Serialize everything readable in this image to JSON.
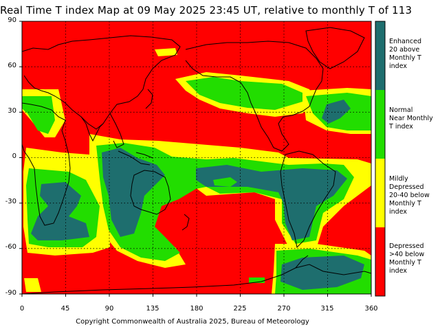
{
  "title": "Real Time T index Map at 09 May 2025 23:45 UT, relative to monthly T of 113",
  "copyright": "Copyright Commonwealth of Australia 2025, Bureau of Meteorology",
  "axes": {
    "y_ticks": [
      "90",
      "60",
      "30",
      "0",
      "-30",
      "-60",
      "-90"
    ],
    "x_ticks": [
      "0",
      "45",
      "90",
      "135",
      "180",
      "225",
      "270",
      "315",
      "360"
    ]
  },
  "legend": {
    "items": [
      {
        "label": "Enhanced\n20 above\nMonthly T index",
        "color": "#1e6e6e"
      },
      {
        "label": "Normal\nNear Monthly\nT index",
        "color": "#22dd00"
      },
      {
        "label": "Mildly Depressed\n20-40 below\nMonthly T index",
        "color": "#ffff00"
      },
      {
        "label": "Depressed\n>40 below\nMonthly T index",
        "color": "#ff0000"
      }
    ]
  },
  "colors": {
    "depressed": "#ff0000",
    "mild": "#ffff00",
    "normal": "#22dd00",
    "enhanced": "#1e6e6e",
    "coast": "#000000",
    "grid": "#000000"
  }
}
